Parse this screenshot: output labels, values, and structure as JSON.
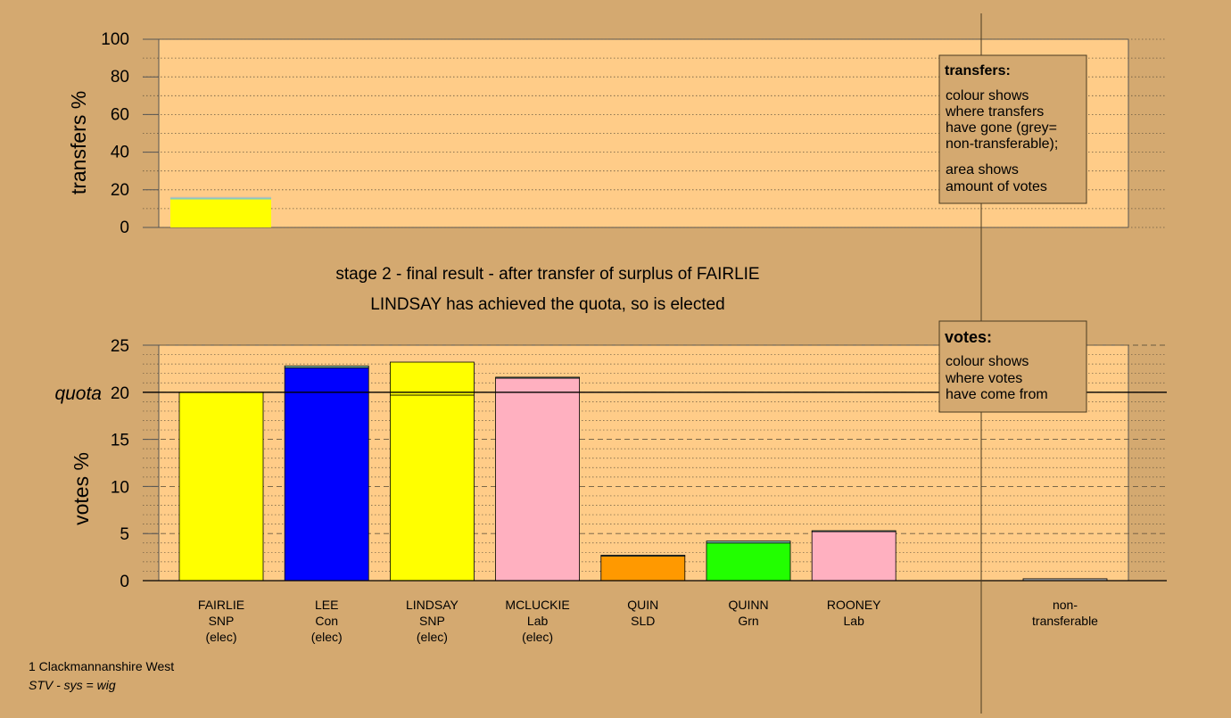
{
  "stage_text": {
    "line1": "stage 2 - final result - after transfer of surplus of FAIRLIE",
    "line2": "LINDSAY has achieved the quota, so is elected"
  },
  "footer": {
    "area": "1 Clackmannanshire West",
    "system": "STV - sys = wig"
  },
  "legends": {
    "transfers": {
      "title": "transfers:",
      "lines_a": [
        "colour shows",
        "where transfers",
        "have gone (grey=",
        "non-transferable);"
      ],
      "lines_b": [
        "area shows",
        "amount of votes"
      ]
    },
    "votes": {
      "title": "votes:",
      "lines": [
        "colour shows",
        "where votes",
        "have come from"
      ]
    }
  },
  "colors": {
    "background": "#d4a970",
    "plot_bg": "#ffcc88",
    "SNP": "#ffff00",
    "Con": "#0000ff",
    "Lab": "#ffb0c0",
    "SLD": "#ff9900",
    "Grn": "#22ff00",
    "transfer_teal": "#88ccbb",
    "transfer_grey": "#bbbbbb"
  },
  "chart_data": [
    {
      "type": "bar",
      "ylabel": "transfers %",
      "ylim": [
        0,
        100
      ],
      "yticks": [
        0,
        20,
        40,
        60,
        80,
        100
      ],
      "grid": true,
      "bars": [
        {
          "segments": [
            {
              "value": 14.9,
              "color_key": "SNP"
            },
            {
              "value": 0.8,
              "color_key": "transfer_teal"
            },
            {
              "value": 0.5,
              "color_key": "transfer_grey"
            }
          ]
        }
      ]
    },
    {
      "type": "bar",
      "ylabel": "votes %",
      "ylim": [
        0,
        25
      ],
      "yticks": [
        0,
        5,
        10,
        15,
        20,
        25
      ],
      "quota": {
        "value": 20,
        "label": "quota"
      },
      "grid": true,
      "categories": [
        {
          "name": "FAIRLIE",
          "party": "SNP",
          "status": "(elec)",
          "segments": [
            {
              "value": 20.0,
              "color_key": "SNP"
            }
          ]
        },
        {
          "name": "LEE",
          "party": "Con",
          "status": "(elec)",
          "segments": [
            {
              "value": 22.6,
              "color_key": "Con"
            },
            {
              "value": 0.2,
              "color_key": "transfer_teal"
            }
          ]
        },
        {
          "name": "LINDSAY",
          "party": "SNP",
          "status": "(elec)",
          "segments": [
            {
              "value": 19.7,
              "color_key": "SNP"
            },
            {
              "value": 3.5,
              "color_key": "SNP"
            }
          ]
        },
        {
          "name": "MCLUCKIE",
          "party": "Lab",
          "status": "(elec)",
          "segments": [
            {
              "value": 21.5,
              "color_key": "Lab"
            },
            {
              "value": 0.1,
              "color_key": "transfer_teal"
            }
          ]
        },
        {
          "name": "QUIN",
          "party": "SLD",
          "status": "",
          "segments": [
            {
              "value": 2.6,
              "color_key": "SLD"
            },
            {
              "value": 0.1,
              "color_key": "transfer_teal"
            }
          ]
        },
        {
          "name": "QUINN",
          "party": "Grn",
          "status": "",
          "segments": [
            {
              "value": 4.0,
              "color_key": "Grn"
            },
            {
              "value": 0.2,
              "color_key": "transfer_teal"
            }
          ]
        },
        {
          "name": "ROONEY",
          "party": "Lab",
          "status": "",
          "segments": [
            {
              "value": 5.2,
              "color_key": "Lab"
            },
            {
              "value": 0.1,
              "color_key": "transfer_teal"
            }
          ]
        }
      ],
      "nontransferable": {
        "label_lines": [
          "non-",
          "transferable"
        ],
        "value": 0.2,
        "color_key": "transfer_grey"
      }
    }
  ]
}
